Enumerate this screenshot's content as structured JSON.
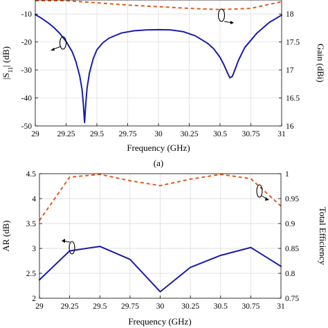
{
  "chart_data": [
    {
      "type": "line",
      "panel_label": "(a)",
      "xlabel": "Frequency (GHz)",
      "ylabel_left": "|S11| (dB)",
      "ylabel_right": "Gain (dBi)",
      "xlim": [
        29,
        31
      ],
      "ylim_left": [
        -50,
        -5
      ],
      "ylim_right": [
        16,
        18.25
      ],
      "grid": true,
      "x_ticks": [
        "29",
        "29.25",
        "29.5",
        "29.75",
        "30",
        "30.25",
        "30.5",
        "30.75",
        "31"
      ],
      "y_ticks_left": [
        "-10",
        "-20",
        "-30",
        "-40",
        "-50"
      ],
      "y_ticks_right": [
        "18",
        "17.5",
        "17",
        "16.5",
        "16"
      ],
      "series": [
        {
          "axis": "left",
          "color": "#1a1aaa",
          "style": "solid",
          "x": [
            29,
            29.05,
            29.1,
            29.15,
            29.2,
            29.25,
            29.3,
            29.33,
            29.36,
            29.38,
            29.39,
            29.4,
            29.41,
            29.42,
            29.44,
            29.47,
            29.5,
            29.55,
            29.6,
            29.7,
            29.8,
            29.9,
            30,
            30.1,
            30.2,
            30.3,
            30.4,
            30.45,
            30.5,
            30.53,
            30.56,
            30.58,
            30.6,
            30.62,
            30.65,
            30.7,
            30.8,
            30.9,
            31
          ],
          "y": [
            -10.2,
            -11.5,
            -13.0,
            -14.8,
            -17.0,
            -19.8,
            -23.5,
            -27.0,
            -32.0,
            -37.0,
            -42.0,
            -48.8,
            -42.0,
            -36.5,
            -31.0,
            -26.0,
            -22.8,
            -20.2,
            -18.6,
            -16.8,
            -16.0,
            -15.7,
            -15.6,
            -15.7,
            -16.3,
            -17.8,
            -20.5,
            -22.5,
            -25.5,
            -28.0,
            -31.0,
            -32.8,
            -32.3,
            -30.0,
            -26.5,
            -22.0,
            -16.8,
            -13.0,
            -10.4
          ]
        },
        {
          "axis": "right",
          "color": "#e15a1c",
          "style": "dashed",
          "x": [
            29,
            29.25,
            29.5,
            29.75,
            30,
            30.25,
            30.5,
            30.75,
            31
          ],
          "y": [
            18.3,
            18.25,
            18.2,
            18.16,
            18.13,
            18.1,
            18.08,
            18.1,
            18.22
          ]
        }
      ]
    },
    {
      "type": "line",
      "xlabel": "Frequency (GHz)",
      "ylabel_left": "AR (dB)",
      "ylabel_right": "Total Efficiency",
      "xlim": [
        29,
        31
      ],
      "ylim_left": [
        2,
        4.5
      ],
      "ylim_right": [
        0.75,
        1
      ],
      "grid": true,
      "x_ticks": [
        "29",
        "29.25",
        "29.5",
        "29.75",
        "30",
        "30.25",
        "30.5",
        "30.75",
        "31"
      ],
      "y_ticks_left": [
        "4.5",
        "4",
        "3.5",
        "3",
        "2.5",
        "2"
      ],
      "y_ticks_right": [
        "1",
        "0.95",
        "0.9",
        "0.85",
        "0.8",
        "0.75"
      ],
      "series": [
        {
          "axis": "left",
          "color": "#1a1aaa",
          "style": "solid",
          "x": [
            29,
            29.25,
            29.5,
            29.75,
            30,
            30.25,
            30.5,
            30.75,
            31
          ],
          "y": [
            2.37,
            2.95,
            3.04,
            2.78,
            2.13,
            2.62,
            2.86,
            3.02,
            2.64
          ]
        },
        {
          "axis": "right",
          "color": "#e15a1c",
          "style": "dashed",
          "x": [
            29,
            29.25,
            29.5,
            29.75,
            30,
            30.25,
            30.5,
            30.75,
            31
          ],
          "y": [
            0.906,
            0.993,
            1.0,
            0.986,
            0.976,
            0.989,
            1.0,
            0.99,
            0.935
          ]
        }
      ]
    }
  ]
}
